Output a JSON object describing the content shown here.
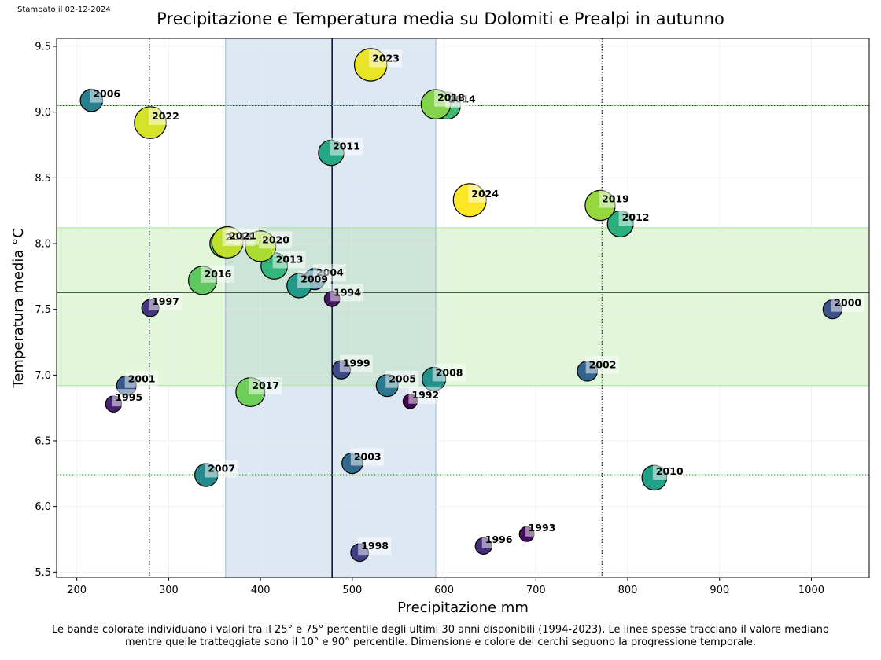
{
  "header": {
    "stamp": "Stampato il 02-12-2024",
    "title": "Precipitazione e Temperatura media su Dolomiti e Prealpi in autunno"
  },
  "caption": {
    "line1": "Le bande colorate individuano i valori tra il 25° e 75° percentile degli ultimi 30 anni disponibili (1994-2023). Le linee spesse tracciano il valore mediano",
    "line2": "mentre quelle tratteggiate sono il 10° e 90° percentile. Dimensione e colore dei cerchi seguono la progressione temporale."
  },
  "chart_data": {
    "type": "scatter",
    "title": "Precipitazione e Temperatura media su Dolomiti e Prealpi in autunno",
    "xlabel": "Precipitazione mm",
    "ylabel": "Temperatura media °C",
    "xlim": [
      178,
      1063
    ],
    "ylim": [
      5.46,
      9.56
    ],
    "xticks": [
      200,
      300,
      400,
      500,
      600,
      700,
      800,
      900,
      1000
    ],
    "yticks": [
      5.5,
      6.0,
      6.5,
      7.0,
      7.5,
      8.0,
      8.5,
      9.0,
      9.5
    ],
    "grid": true,
    "reference": {
      "period": "1994-2023",
      "precip_p25": 362,
      "precip_p75": 591,
      "precip_median": 478,
      "precip_p10": 279,
      "precip_p90": 772,
      "temp_p25": 6.92,
      "temp_p75": 8.12,
      "temp_median": 7.63,
      "temp_p10": 6.24,
      "temp_p90": 9.05,
      "precip_band_color": "#dde8f3",
      "temp_band_color": "#e2f7da",
      "overlap_color": "#cde4d8"
    },
    "colormap": "viridis",
    "points": [
      {
        "year": 1992,
        "x": 563,
        "y": 6.8
      },
      {
        "year": 1993,
        "x": 690,
        "y": 5.79
      },
      {
        "year": 1994,
        "x": 478,
        "y": 7.58
      },
      {
        "year": 1995,
        "x": 240,
        "y": 6.78
      },
      {
        "year": 1996,
        "x": 643,
        "y": 5.7
      },
      {
        "year": 1997,
        "x": 280,
        "y": 7.51
      },
      {
        "year": 1998,
        "x": 508,
        "y": 5.65
      },
      {
        "year": 1999,
        "x": 488,
        "y": 7.04
      },
      {
        "year": 2000,
        "x": 1023,
        "y": 7.5
      },
      {
        "year": 2001,
        "x": 254,
        "y": 6.92
      },
      {
        "year": 2002,
        "x": 756,
        "y": 7.03
      },
      {
        "year": 2003,
        "x": 500,
        "y": 6.33
      },
      {
        "year": 2004,
        "x": 459,
        "y": 7.73
      },
      {
        "year": 2005,
        "x": 538,
        "y": 6.92
      },
      {
        "year": 2006,
        "x": 216,
        "y": 9.09
      },
      {
        "year": 2007,
        "x": 341,
        "y": 6.24
      },
      {
        "year": 2008,
        "x": 589,
        "y": 6.97
      },
      {
        "year": 2009,
        "x": 442,
        "y": 7.68
      },
      {
        "year": 2010,
        "x": 829,
        "y": 6.22
      },
      {
        "year": 2011,
        "x": 477,
        "y": 8.69
      },
      {
        "year": 2012,
        "x": 792,
        "y": 8.15
      },
      {
        "year": 2013,
        "x": 415,
        "y": 7.83
      },
      {
        "year": 2014,
        "x": 603,
        "y": 9.05
      },
      {
        "year": 2015,
        "x": 360,
        "y": 8.0
      },
      {
        "year": 2016,
        "x": 337,
        "y": 7.72
      },
      {
        "year": 2017,
        "x": 389,
        "y": 6.87
      },
      {
        "year": 2018,
        "x": 591,
        "y": 9.06
      },
      {
        "year": 2019,
        "x": 770,
        "y": 8.29
      },
      {
        "year": 2020,
        "x": 400,
        "y": 7.98
      },
      {
        "year": 2021,
        "x": 364,
        "y": 8.01
      },
      {
        "year": 2022,
        "x": 280,
        "y": 8.92
      },
      {
        "year": 2023,
        "x": 520,
        "y": 9.36
      },
      {
        "year": 2024,
        "x": 628,
        "y": 8.33
      }
    ]
  }
}
